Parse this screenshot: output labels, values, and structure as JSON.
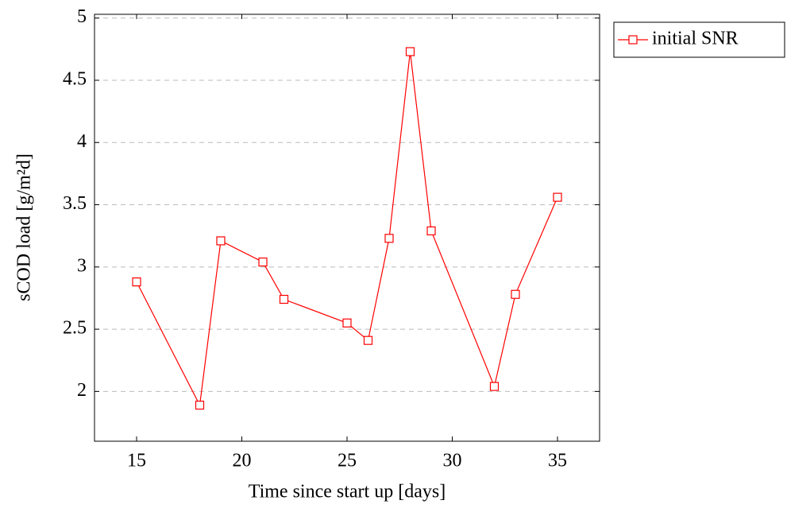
{
  "chart_data": {
    "type": "line",
    "x_label": "Time since start up [days]",
    "y_label": "sCOD load [g/m²d]",
    "x": [
      15,
      18,
      19,
      21,
      22,
      25,
      26,
      27,
      28,
      29,
      32,
      33,
      35
    ],
    "series": [
      {
        "name": "initial SNR",
        "color": "#ff0000",
        "marker": "square",
        "values": [
          2.88,
          1.89,
          3.21,
          3.04,
          2.74,
          2.55,
          2.41,
          3.23,
          4.73,
          3.29,
          2.04,
          2.78,
          3.56
        ]
      }
    ],
    "xlim": [
      13,
      37
    ],
    "ylim": [
      1.6,
      5.03
    ],
    "xticks": [
      15,
      20,
      25,
      30,
      35
    ],
    "yticks": [
      2,
      2.5,
      3,
      3.5,
      4,
      4.5,
      5
    ],
    "grid": "y",
    "legend": "outside-right-top"
  }
}
